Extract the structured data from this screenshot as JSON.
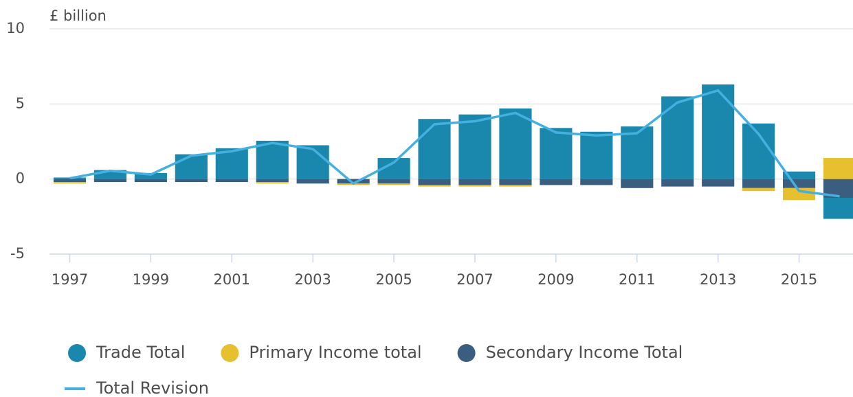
{
  "chart_data": {
    "type": "bar",
    "stacked": true,
    "y_label": "£ billion",
    "categories": [
      "1997",
      null,
      "1999",
      null,
      "2001",
      null,
      "2003",
      null,
      "2005",
      null,
      "2007",
      null,
      "2009",
      null,
      "2011",
      null,
      "2013",
      null,
      "2015",
      null
    ],
    "series": [
      {
        "name": "Trade Total",
        "type": "bar",
        "color": "#1a87ad",
        "values": [
          0.1,
          0.6,
          0.4,
          1.65,
          2.05,
          2.55,
          2.25,
          0,
          1.4,
          4.0,
          4.3,
          4.7,
          3.4,
          3.15,
          3.5,
          5.5,
          6.3,
          3.7,
          0.5,
          -1.4
        ]
      },
      {
        "name": "Primary Income total",
        "type": "bar",
        "color": "#e6c02f",
        "values": [
          -0.1,
          0,
          0,
          0,
          0,
          -0.1,
          0,
          -0.1,
          -0.1,
          -0.1,
          -0.1,
          -0.1,
          0,
          0,
          0,
          0,
          0,
          -0.2,
          -0.8,
          1.4
        ]
      },
      {
        "name": "Secondary Income Total",
        "type": "bar",
        "color": "#3b5d80",
        "values": [
          -0.2,
          -0.2,
          -0.2,
          -0.2,
          -0.2,
          -0.2,
          -0.3,
          -0.3,
          -0.3,
          -0.4,
          -0.4,
          -0.4,
          -0.4,
          -0.4,
          -0.6,
          -0.5,
          -0.5,
          -0.6,
          -0.6,
          -1.25
        ]
      },
      {
        "name": "Total Revision",
        "type": "line",
        "color": "#45b0e0",
        "values": [
          0.05,
          0.55,
          0.3,
          1.55,
          1.85,
          2.4,
          2.0,
          -0.3,
          1.1,
          3.65,
          3.85,
          4.4,
          3.1,
          2.9,
          3.05,
          5.1,
          5.9,
          3.0,
          -0.8,
          -1.15
        ]
      }
    ],
    "ylim": [
      -5,
      10
    ],
    "yticks": [
      -5,
      0,
      5,
      10
    ],
    "grid": true
  }
}
